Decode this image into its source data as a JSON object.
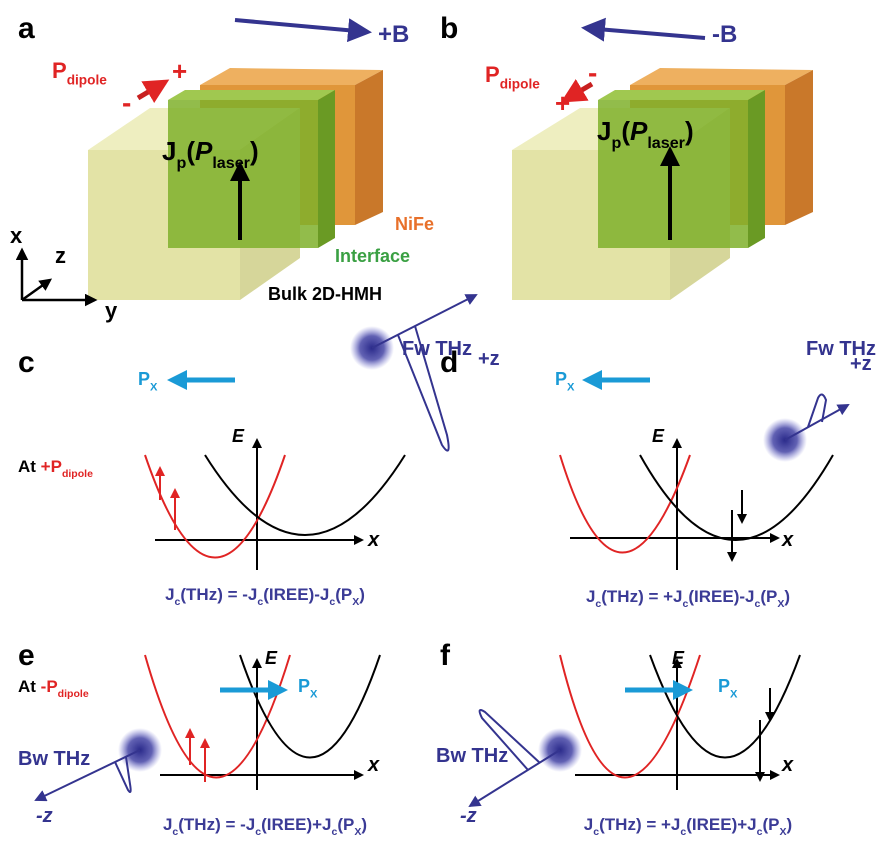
{
  "labels": [
    "a",
    "b",
    "c",
    "d",
    "e",
    "f"
  ],
  "texts": [
    {
      "color": "#e02424",
      "segments": [
        {
          "t": "P"
        },
        {
          "t": "dipole",
          "sub": true
        }
      ]
    },
    {
      "color": "#e02424",
      "segments": [
        {
          "t": "+"
        }
      ]
    },
    {
      "color": "#e02424",
      "segments": [
        {
          "t": "-"
        }
      ]
    },
    {
      "color": "#34348f",
      "segments": [
        {
          "t": "+B"
        }
      ]
    },
    {
      "color": "#000000",
      "segments": [
        {
          "t": "J"
        },
        {
          "t": "p",
          "sub": true
        },
        {
          "t": "("
        },
        {
          "t": "P",
          "italic": true
        },
        {
          "t": "laser",
          "sub": true
        },
        {
          "t": ")"
        }
      ]
    },
    {
      "color": "#e8702a",
      "segments": [
        {
          "t": "NiFe"
        }
      ]
    },
    {
      "color": "#3aa043",
      "segments": [
        {
          "t": "Interface"
        }
      ]
    },
    {
      "color": "#000000",
      "segments": [
        {
          "t": "Bulk 2D-HMH"
        }
      ]
    },
    {
      "color": "#000000",
      "segments": [
        {
          "t": "x"
        }
      ]
    },
    {
      "color": "#000000",
      "segments": [
        {
          "t": "z"
        }
      ]
    },
    {
      "color": "#000000",
      "segments": [
        {
          "t": "y"
        }
      ]
    },
    {
      "color": "#e02424",
      "segments": [
        {
          "t": "P"
        },
        {
          "t": "dipole",
          "sub": true
        }
      ]
    },
    {
      "color": "#e02424",
      "segments": [
        {
          "t": "-"
        }
      ]
    },
    {
      "color": "#e02424",
      "segments": [
        {
          "t": "+"
        }
      ]
    },
    {
      "color": "#34348f",
      "segments": [
        {
          "t": "-B"
        }
      ]
    },
    {
      "color": "#000000",
      "segments": [
        {
          "t": "J"
        },
        {
          "t": "p",
          "sub": true
        },
        {
          "t": "("
        },
        {
          "t": "P",
          "italic": true
        },
        {
          "t": "laser",
          "sub": true
        },
        {
          "t": ")"
        }
      ]
    },
    {
      "color": "#1a9ad6",
      "segments": [
        {
          "t": "P"
        },
        {
          "t": "X",
          "sub": true
        }
      ]
    },
    {
      "color": "#34348f",
      "segments": [
        {
          "t": "Fw THz"
        }
      ]
    },
    {
      "color": "#34348f",
      "segments": [
        {
          "t": "+z"
        }
      ]
    },
    {
      "color": "#000000",
      "segments": [
        {
          "t": "E",
          "italic": true
        }
      ]
    },
    {
      "color": "#000000",
      "segments": [
        {
          "t": "At "
        },
        {
          "t": "+P",
          "color": "#e02424"
        },
        {
          "t": "dipole",
          "sub": true,
          "color": "#e02424"
        }
      ]
    },
    {
      "color": "#000000",
      "segments": [
        {
          "t": "x",
          "italic": true
        }
      ]
    },
    {
      "color": "#3b3b96",
      "segments": [
        {
          "t": "J"
        },
        {
          "t": "c",
          "sub": true
        },
        {
          "t": "(THz) = -J"
        },
        {
          "t": "c",
          "sub": true
        },
        {
          "t": "(IREE)-J"
        },
        {
          "t": "c",
          "sub": true
        },
        {
          "t": "(P"
        },
        {
          "t": "X",
          "sub": true
        },
        {
          "t": ")"
        }
      ]
    },
    {
      "color": "#1a9ad6",
      "segments": [
        {
          "t": "P"
        },
        {
          "t": "X",
          "sub": true
        }
      ]
    },
    {
      "color": "#34348f",
      "segments": [
        {
          "t": "Fw THz"
        }
      ]
    },
    {
      "color": "#34348f",
      "segments": [
        {
          "t": "+z"
        }
      ]
    },
    {
      "color": "#000000",
      "segments": [
        {
          "t": "E",
          "italic": true
        }
      ]
    },
    {
      "color": "#000000",
      "segments": [
        {
          "t": "x",
          "italic": true
        }
      ]
    },
    {
      "color": "#3b3b96",
      "segments": [
        {
          "t": "J"
        },
        {
          "t": "c",
          "sub": true
        },
        {
          "t": "(THz) = +J"
        },
        {
          "t": "c",
          "sub": true
        },
        {
          "t": "(IREE)-J"
        },
        {
          "t": "c",
          "sub": true
        },
        {
          "t": "(P"
        },
        {
          "t": "X",
          "sub": true
        },
        {
          "t": ")"
        }
      ]
    },
    {
      "color": "#000000",
      "segments": [
        {
          "t": "At "
        },
        {
          "t": "-P",
          "color": "#e02424"
        },
        {
          "t": "dipole",
          "sub": true,
          "color": "#e02424"
        }
      ]
    },
    {
      "color": "#1a9ad6",
      "segments": [
        {
          "t": "P"
        },
        {
          "t": "X",
          "sub": true
        }
      ]
    },
    {
      "color": "#000000",
      "segments": [
        {
          "t": "E",
          "italic": true
        }
      ]
    },
    {
      "color": "#34348f",
      "segments": [
        {
          "t": "Bw THz"
        }
      ]
    },
    {
      "color": "#34348f",
      "segments": [
        {
          "t": "-z",
          "italic": true
        }
      ]
    },
    {
      "color": "#000000",
      "segments": [
        {
          "t": "x",
          "italic": true
        }
      ]
    },
    {
      "color": "#3b3b96",
      "segments": [
        {
          "t": "J"
        },
        {
          "t": "c",
          "sub": true
        },
        {
          "t": "(THz) = -J"
        },
        {
          "t": "c",
          "sub": true
        },
        {
          "t": "(IREE)+J"
        },
        {
          "t": "c",
          "sub": true
        },
        {
          "t": "(P"
        },
        {
          "t": "X",
          "sub": true
        },
        {
          "t": ")"
        }
      ]
    },
    {
      "color": "#1a9ad6",
      "segments": [
        {
          "t": "P"
        },
        {
          "t": "X",
          "sub": true
        }
      ]
    },
    {
      "color": "#000000",
      "segments": [
        {
          "t": "E",
          "italic": true
        }
      ]
    },
    {
      "color": "#34348f",
      "segments": [
        {
          "t": "Bw THz"
        }
      ]
    },
    {
      "color": "#34348f",
      "segments": [
        {
          "t": "-z",
          "italic": true
        }
      ]
    },
    {
      "color": "#000000",
      "segments": [
        {
          "t": "x",
          "italic": true
        }
      ]
    },
    {
      "color": "#3b3b96",
      "segments": [
        {
          "t": "J"
        },
        {
          "t": "c",
          "sub": true
        },
        {
          "t": "(THz) = +J"
        },
        {
          "t": "c",
          "sub": true
        },
        {
          "t": "(IREE)+J"
        },
        {
          "t": "c",
          "sub": true
        },
        {
          "t": "(P"
        },
        {
          "t": "X",
          "sub": true
        },
        {
          "t": ")"
        }
      ]
    }
  ]
}
